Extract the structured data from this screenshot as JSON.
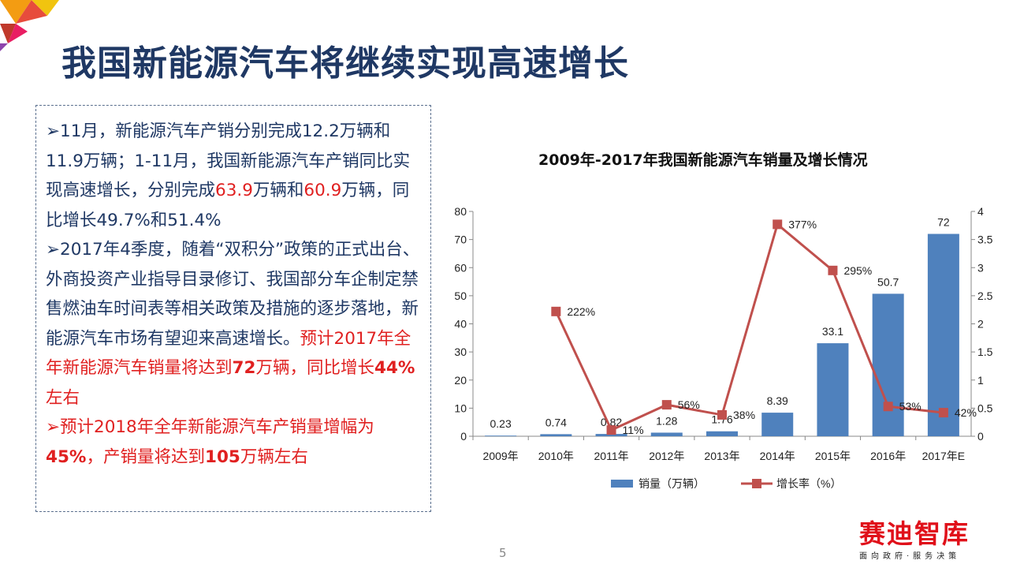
{
  "title": "我国新能源汽车将继续实现高速增长",
  "paragraphs": [
    {
      "segments": [
        {
          "text": "➢11月，新能源汽车产销分别完成12.2万辆和11.9万辆；1-11月，我国新能源汽车产销同比实现高速增长，分别完成",
          "style": ""
        },
        {
          "text": "63.9",
          "style": "red"
        },
        {
          "text": "万辆和",
          "style": ""
        },
        {
          "text": "60.9",
          "style": "red"
        },
        {
          "text": "万辆，同比增长49.7%和51.4%",
          "style": ""
        }
      ]
    },
    {
      "segments": [
        {
          "text": "➢2017年4季度，随着“双积分”政策的正式出台、外商投资产业指导目录修订、我国部分车企制定禁售燃油车时间表等相关政策及措施的逐步落地，新能源汽车市场有望迎来高速增长。",
          "style": ""
        },
        {
          "text": "预计2017年全年新能源汽车销量将达到",
          "style": "red"
        },
        {
          "text": "72",
          "style": "red b"
        },
        {
          "text": "万辆，同比增长",
          "style": "red"
        },
        {
          "text": "44%",
          "style": "red b"
        },
        {
          "text": "左右",
          "style": "red"
        }
      ]
    },
    {
      "segments": [
        {
          "text": "➢预计2018年全年新能源汽车产销量增幅为",
          "style": "red"
        },
        {
          "text": "45%",
          "style": "red b"
        },
        {
          "text": "，产销量将达到",
          "style": "red"
        },
        {
          "text": "105",
          "style": "red b"
        },
        {
          "text": "万辆左右",
          "style": "red"
        }
      ]
    }
  ],
  "page_number": "5",
  "logo": {
    "name": "赛迪智库",
    "tagline": "面向政府·服务决策"
  },
  "chart_data": {
    "type": "bar",
    "title": "2009年-2017年我国新能源汽车销量及增长情况",
    "categories": [
      "2009年",
      "2010年",
      "2011年",
      "2012年",
      "2013年",
      "2014年",
      "2015年",
      "2016年",
      "2017年E"
    ],
    "series": [
      {
        "name": "销量（万辆）",
        "type": "bar",
        "axis": "left",
        "color": "#4f81bd",
        "values": [
          0.23,
          0.74,
          0.82,
          1.28,
          1.76,
          8.39,
          33.1,
          50.7,
          72
        ],
        "labels": [
          "0.23",
          "0.74",
          "0.82",
          "1.28",
          "1.76",
          "8.39",
          "33.1",
          "50.7",
          "72"
        ]
      },
      {
        "name": "增长率（%）",
        "type": "line",
        "axis": "right",
        "color": "#c0504d",
        "values": [
          null,
          2.22,
          0.11,
          0.56,
          0.38,
          3.77,
          2.95,
          0.53,
          0.42
        ],
        "labels": [
          null,
          "222%",
          "11%",
          "56%",
          "38%",
          "377%",
          "295%",
          "53%",
          "42%"
        ]
      }
    ],
    "ylim_left": [
      0,
      80
    ],
    "yticks_left": [
      "0",
      "10",
      "20",
      "30",
      "40",
      "50",
      "60",
      "70",
      "80"
    ],
    "ylim_right": [
      0,
      4
    ],
    "yticks_right": [
      "0",
      "0.5",
      "1",
      "1.5",
      "2",
      "2.5",
      "3",
      "3.5",
      "4"
    ],
    "legend": "bottom",
    "grid": false
  }
}
